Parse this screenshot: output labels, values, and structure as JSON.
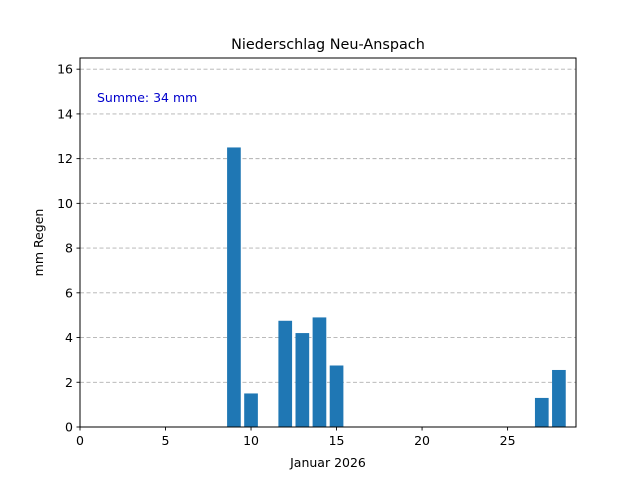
{
  "chart_data": {
    "type": "bar",
    "title": "Niederschlag Neu-Anspach",
    "xlabel": "Januar 2026",
    "ylabel": "mm Regen",
    "annotation": "Summe: 34 mm",
    "annotation_color": "#0000cc",
    "bar_color": "#1f77b4",
    "grid": true,
    "x": [
      9,
      10,
      12,
      13,
      14,
      15,
      27,
      28
    ],
    "values": [
      12.5,
      1.5,
      4.75,
      4.2,
      4.9,
      2.75,
      1.3,
      2.55
    ],
    "xlim": [
      0,
      29
    ],
    "ylim": [
      0,
      16.5
    ],
    "xticks": [
      0,
      5,
      10,
      15,
      20,
      25
    ],
    "yticks": [
      0,
      2,
      4,
      6,
      8,
      10,
      12,
      14,
      16
    ]
  }
}
